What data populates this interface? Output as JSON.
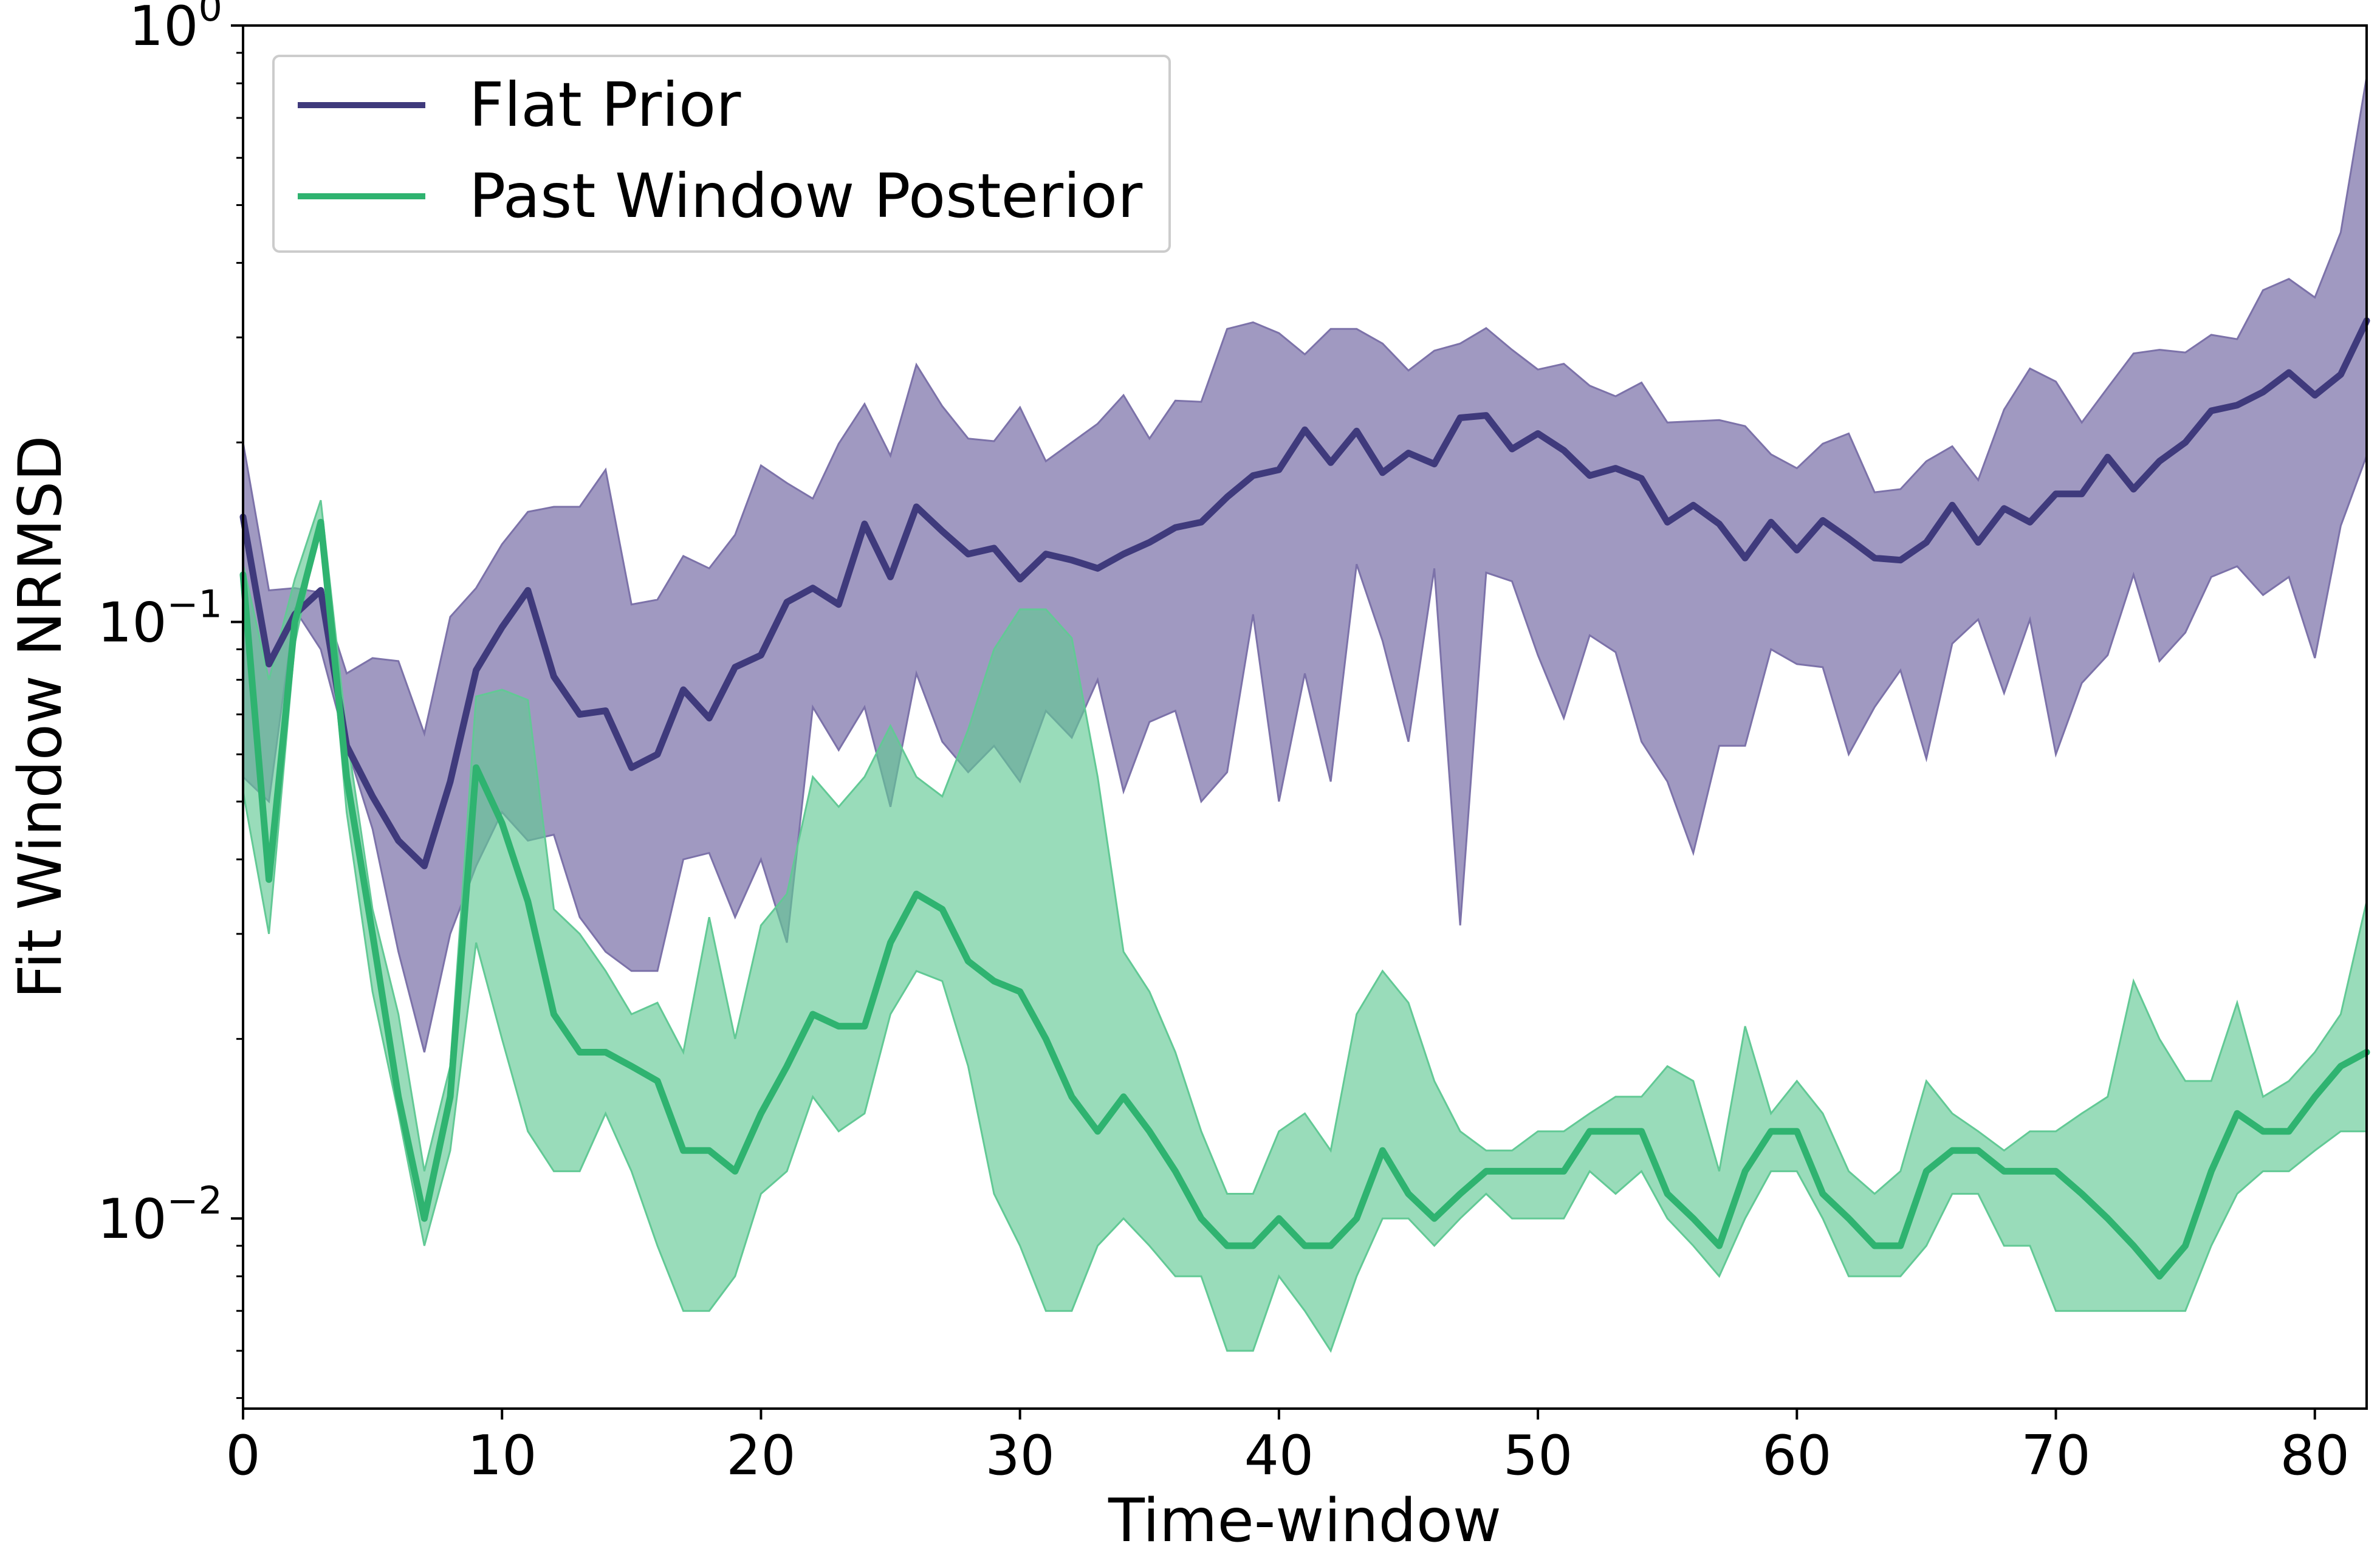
{
  "chart_data": {
    "type": "line",
    "xlabel": "Time-window",
    "ylabel": "Fit Window NRMSD",
    "yscale": "log",
    "xlim": [
      0,
      82
    ],
    "ylim": [
      0.0048,
      1.0
    ],
    "xticks": [
      0,
      10,
      20,
      30,
      40,
      50,
      60,
      70,
      80
    ],
    "yticks": [
      {
        "value": 0.01,
        "base": "10",
        "exp": "−2"
      },
      {
        "value": 0.1,
        "base": "10",
        "exp": "−1"
      },
      {
        "value": 1.0,
        "base": "10",
        "exp": "0"
      }
    ],
    "grid": false,
    "legend": {
      "position": "top-left"
    },
    "series": [
      {
        "name": "Flat Prior",
        "color": "#3f3a7c",
        "band_color": "#7c72a9",
        "values": [
          0.15,
          0.085,
          0.103,
          0.113,
          0.062,
          0.051,
          0.043,
          0.039,
          0.054,
          0.083,
          0.098,
          0.113,
          0.081,
          0.07,
          0.071,
          0.057,
          0.06,
          0.077,
          0.069,
          0.084,
          0.088,
          0.108,
          0.114,
          0.107,
          0.146,
          0.119,
          0.156,
          0.142,
          0.13,
          0.133,
          0.118,
          0.13,
          0.127,
          0.123,
          0.13,
          0.136,
          0.144,
          0.147,
          0.162,
          0.176,
          0.18,
          0.21,
          0.185,
          0.209,
          0.178,
          0.192,
          0.184,
          0.22,
          0.222,
          0.195,
          0.207,
          0.194,
          0.176,
          0.181,
          0.174,
          0.147,
          0.157,
          0.146,
          0.128,
          0.147,
          0.132,
          0.148,
          0.138,
          0.128,
          0.127,
          0.136,
          0.157,
          0.136,
          0.155,
          0.147,
          0.164,
          0.164,
          0.189,
          0.167,
          0.186,
          0.2,
          0.226,
          0.231,
          0.243,
          0.262,
          0.24,
          0.26,
          0.32
        ],
        "upper": [
          0.2,
          0.113,
          0.114,
          0.112,
          0.082,
          0.087,
          0.086,
          0.065,
          0.102,
          0.114,
          0.135,
          0.153,
          0.156,
          0.156,
          0.18,
          0.107,
          0.109,
          0.129,
          0.123,
          0.14,
          0.183,
          0.171,
          0.161,
          0.199,
          0.232,
          0.19,
          0.27,
          0.23,
          0.203,
          0.201,
          0.229,
          0.186,
          0.2,
          0.215,
          0.24,
          0.203,
          0.235,
          0.234,
          0.31,
          0.318,
          0.305,
          0.281,
          0.31,
          0.31,
          0.293,
          0.264,
          0.285,
          0.293,
          0.311,
          0.286,
          0.265,
          0.271,
          0.249,
          0.239,
          0.252,
          0.216,
          0.217,
          0.218,
          0.213,
          0.191,
          0.181,
          0.199,
          0.207,
          0.165,
          0.167,
          0.186,
          0.197,
          0.173,
          0.227,
          0.266,
          0.253,
          0.216,
          0.247,
          0.282,
          0.286,
          0.283,
          0.303,
          0.298,
          0.36,
          0.376,
          0.35,
          0.45,
          0.82
        ],
        "lower": [
          0.055,
          0.05,
          0.105,
          0.09,
          0.062,
          0.045,
          0.028,
          0.019,
          0.03,
          0.039,
          0.048,
          0.043,
          0.044,
          0.032,
          0.028,
          0.026,
          0.026,
          0.04,
          0.041,
          0.032,
          0.04,
          0.029,
          0.072,
          0.061,
          0.072,
          0.049,
          0.082,
          0.063,
          0.056,
          0.062,
          0.054,
          0.071,
          0.064,
          0.08,
          0.052,
          0.068,
          0.071,
          0.05,
          0.056,
          0.103,
          0.05,
          0.082,
          0.054,
          0.125,
          0.093,
          0.063,
          0.123,
          0.031,
          0.121,
          0.117,
          0.088,
          0.069,
          0.095,
          0.089,
          0.063,
          0.054,
          0.041,
          0.062,
          0.062,
          0.09,
          0.085,
          0.084,
          0.06,
          0.072,
          0.083,
          0.059,
          0.092,
          0.101,
          0.076,
          0.101,
          0.06,
          0.079,
          0.088,
          0.12,
          0.086,
          0.096,
          0.119,
          0.124,
          0.111,
          0.119,
          0.087,
          0.145,
          0.19
        ]
      },
      {
        "name": "Past Window Posterior",
        "color": "#2fb370",
        "band_color": "#62c995",
        "values": [
          0.12,
          0.037,
          0.1,
          0.147,
          0.055,
          0.03,
          0.016,
          0.01,
          0.016,
          0.057,
          0.046,
          0.034,
          0.022,
          0.019,
          0.019,
          0.018,
          0.017,
          0.013,
          0.013,
          0.012,
          0.015,
          0.018,
          0.022,
          0.021,
          0.021,
          0.029,
          0.035,
          0.033,
          0.027,
          0.025,
          0.024,
          0.02,
          0.016,
          0.014,
          0.016,
          0.014,
          0.012,
          0.01,
          0.009,
          0.009,
          0.01,
          0.009,
          0.009,
          0.01,
          0.013,
          0.011,
          0.01,
          0.011,
          0.012,
          0.012,
          0.012,
          0.012,
          0.014,
          0.014,
          0.014,
          0.011,
          0.01,
          0.009,
          0.012,
          0.014,
          0.014,
          0.011,
          0.01,
          0.009,
          0.009,
          0.012,
          0.013,
          0.013,
          0.012,
          0.012,
          0.012,
          0.011,
          0.01,
          0.009,
          0.008,
          0.009,
          0.012,
          0.015,
          0.014,
          0.014,
          0.016,
          0.018,
          0.019
        ],
        "upper": [
          0.125,
          0.08,
          0.118,
          0.16,
          0.065,
          0.033,
          0.022,
          0.012,
          0.018,
          0.075,
          0.077,
          0.074,
          0.033,
          0.03,
          0.026,
          0.022,
          0.023,
          0.019,
          0.032,
          0.02,
          0.031,
          0.035,
          0.055,
          0.049,
          0.055,
          0.067,
          0.055,
          0.051,
          0.066,
          0.09,
          0.105,
          0.105,
          0.094,
          0.055,
          0.028,
          0.024,
          0.019,
          0.014,
          0.011,
          0.011,
          0.014,
          0.015,
          0.013,
          0.022,
          0.026,
          0.023,
          0.017,
          0.014,
          0.013,
          0.013,
          0.014,
          0.014,
          0.015,
          0.016,
          0.016,
          0.018,
          0.017,
          0.012,
          0.021,
          0.015,
          0.017,
          0.015,
          0.012,
          0.011,
          0.012,
          0.017,
          0.015,
          0.014,
          0.013,
          0.014,
          0.014,
          0.015,
          0.016,
          0.025,
          0.02,
          0.017,
          0.017,
          0.023,
          0.016,
          0.017,
          0.019,
          0.022,
          0.034
        ],
        "lower": [
          0.052,
          0.03,
          0.092,
          0.148,
          0.048,
          0.024,
          0.015,
          0.009,
          0.013,
          0.029,
          0.02,
          0.014,
          0.012,
          0.012,
          0.015,
          0.012,
          0.009,
          0.007,
          0.007,
          0.008,
          0.011,
          0.012,
          0.016,
          0.014,
          0.015,
          0.022,
          0.026,
          0.025,
          0.018,
          0.011,
          0.009,
          0.007,
          0.007,
          0.009,
          0.01,
          0.009,
          0.008,
          0.008,
          0.006,
          0.006,
          0.008,
          0.007,
          0.006,
          0.008,
          0.01,
          0.01,
          0.009,
          0.01,
          0.011,
          0.01,
          0.01,
          0.01,
          0.012,
          0.011,
          0.012,
          0.01,
          0.009,
          0.008,
          0.01,
          0.012,
          0.012,
          0.01,
          0.008,
          0.008,
          0.008,
          0.009,
          0.011,
          0.011,
          0.009,
          0.009,
          0.007,
          0.007,
          0.007,
          0.007,
          0.007,
          0.007,
          0.009,
          0.011,
          0.012,
          0.012,
          0.013,
          0.014,
          0.014
        ]
      }
    ]
  }
}
